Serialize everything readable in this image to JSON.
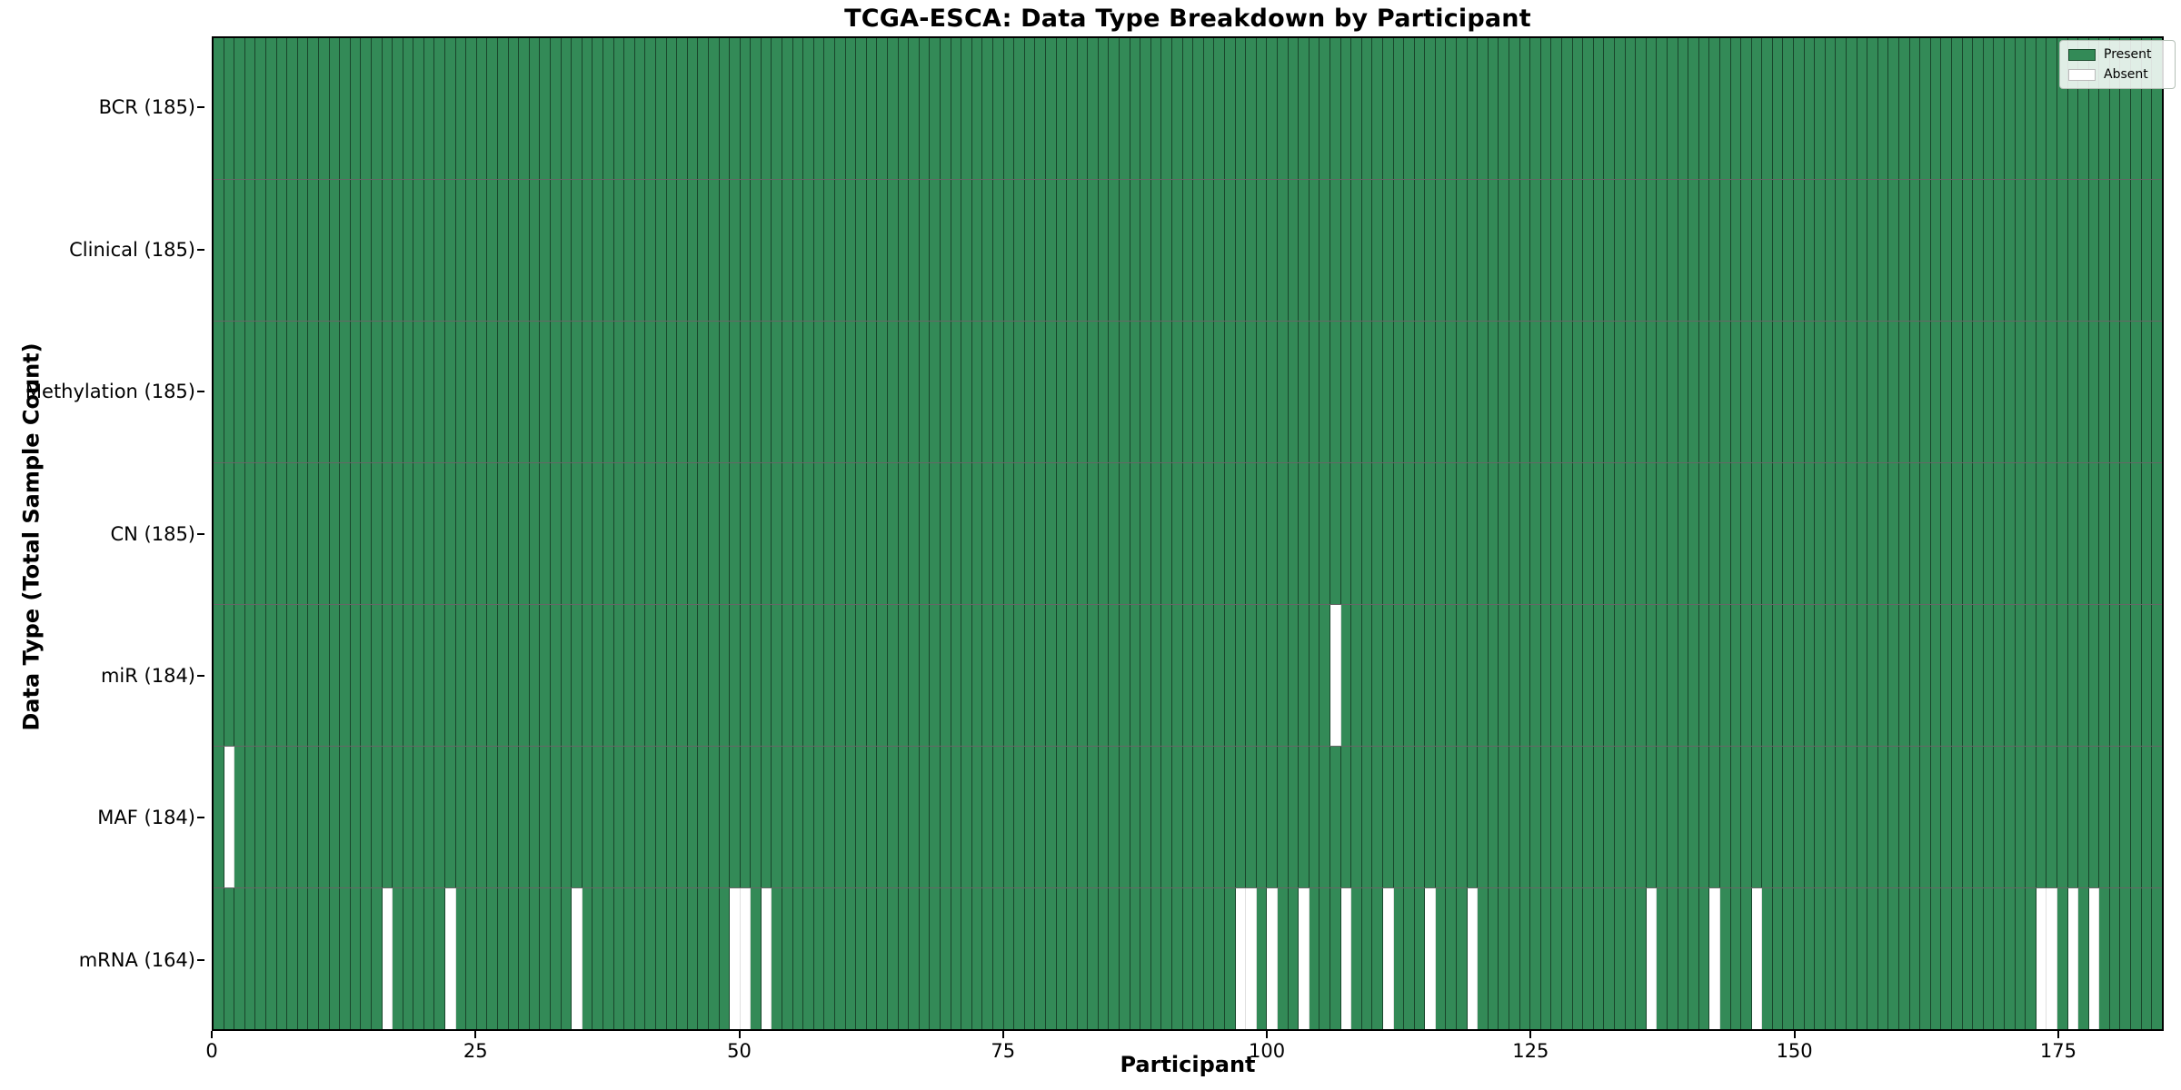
{
  "chart_data": {
    "type": "heatmap",
    "title": "TCGA-ESCA: Data Type Breakdown by Participant",
    "xlabel": "Participant",
    "ylabel": "Data Type (Total Sample Count)",
    "n_participants": 185,
    "x_ticks": [
      0,
      25,
      50,
      75,
      100,
      125,
      150,
      175
    ],
    "rows": [
      {
        "label": "BCR (185)",
        "total": 185,
        "absent_participants": []
      },
      {
        "label": "Clinical (185)",
        "total": 185,
        "absent_participants": []
      },
      {
        "label": "Methylation (185)",
        "total": 185,
        "absent_participants": []
      },
      {
        "label": "CN (185)",
        "total": 185,
        "absent_participants": []
      },
      {
        "label": "miR (184)",
        "total": 184,
        "absent_participants": [
          106
        ]
      },
      {
        "label": "MAF (184)",
        "total": 184,
        "absent_participants": [
          1
        ]
      },
      {
        "label": "mRNA (164)",
        "total": 164,
        "absent_participants": [
          16,
          22,
          34,
          49,
          50,
          52,
          97,
          98,
          100,
          103,
          107,
          111,
          115,
          119,
          136,
          142,
          146,
          173,
          174,
          176,
          178
        ]
      }
    ],
    "legend": [
      {
        "label": "Present",
        "color": "#338a57",
        "edge": "rgba(0,0,0,0.45)"
      },
      {
        "label": "Absent",
        "color": "#ffffff",
        "edge": "#bbbbbb"
      }
    ],
    "colors": {
      "present": "#338a57",
      "absent": "#ffffff",
      "cell_edge": "rgba(0,0,0,0.5)",
      "spine": "#000000"
    },
    "legend_position": "upper right",
    "grid": false
  }
}
